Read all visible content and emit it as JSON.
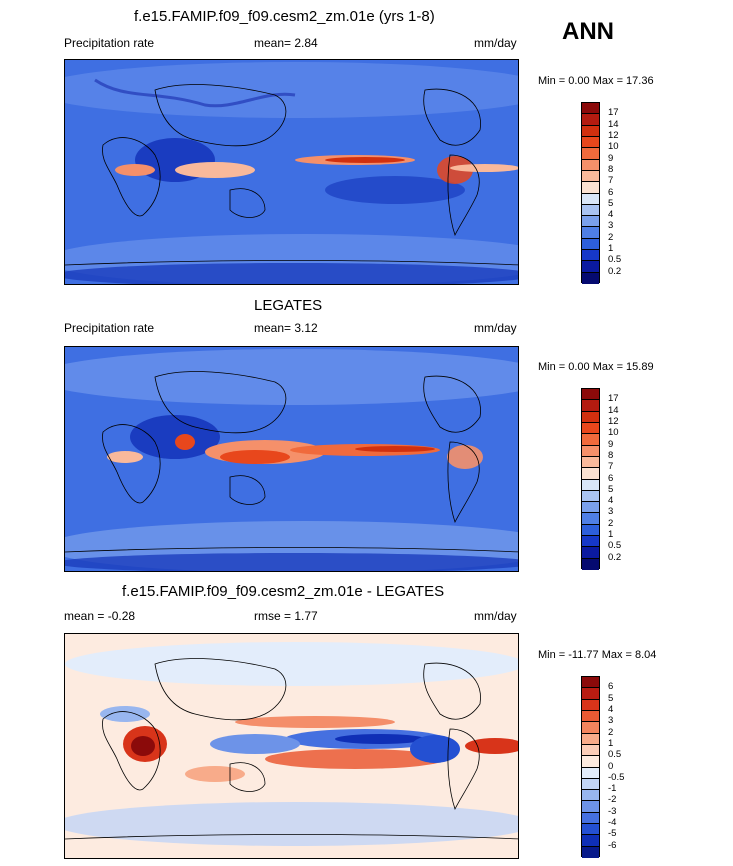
{
  "season": "ANN",
  "panels": [
    {
      "title": "f.e15.FAMIP.f09_f09.cesm2_zm.01e (yrs 1-8)",
      "left_label": "Precipitation rate",
      "center_label": "mean=   2.84",
      "right_label": "mm/day",
      "minmax": "Min =   0.00 Max =  17.36",
      "colorbar_labels": [
        "17",
        "14",
        "12",
        "10",
        "9",
        "8",
        "7",
        "6",
        "5",
        "4",
        "3",
        "2",
        "1",
        "0.5",
        "0.2"
      ],
      "colorbar_colors": [
        "#8b0a0a",
        "#b31b10",
        "#d1300f",
        "#e8471c",
        "#f06a3c",
        "#f5906a",
        "#f9b99b",
        "#fbe2d2",
        "#d9e6f8",
        "#a9c3f2",
        "#7aa0ec",
        "#4f7fe6",
        "#2d5fdc",
        "#1638c8",
        "#0b1aa0",
        "#050a70"
      ]
    },
    {
      "title": "LEGATES",
      "left_label": "Precipitation rate",
      "center_label": "mean=   3.12",
      "right_label": "mm/day",
      "minmax": "Min =   0.00 Max =  15.89",
      "colorbar_labels": [
        "17",
        "14",
        "12",
        "10",
        "9",
        "8",
        "7",
        "6",
        "5",
        "4",
        "3",
        "2",
        "1",
        "0.5",
        "0.2"
      ],
      "colorbar_colors": [
        "#8b0a0a",
        "#b31b10",
        "#d1300f",
        "#e8471c",
        "#f06a3c",
        "#f5906a",
        "#f9b99b",
        "#fbe2d2",
        "#d9e6f8",
        "#a9c3f2",
        "#7aa0ec",
        "#4f7fe6",
        "#2d5fdc",
        "#1638c8",
        "#0b1aa0",
        "#050a70"
      ]
    },
    {
      "title": "f.e15.FAMIP.f09_f09.cesm2_zm.01e - LEGATES",
      "left_label": "mean =  -0.28",
      "center_label": "rmse =   1.77",
      "right_label": "mm/day",
      "minmax": "Min = -11.77 Max =   8.04",
      "colorbar_labels": [
        "6",
        "5",
        "4",
        "3",
        "2",
        "1",
        "0.5",
        "0",
        "-0.5",
        "-1",
        "-2",
        "-3",
        "-4",
        "-5",
        "-6"
      ],
      "colorbar_colors": [
        "#8b0a0a",
        "#b81c12",
        "#d8341a",
        "#ea5a34",
        "#f3845d",
        "#f8ab8a",
        "#fbcdb8",
        "#fdebe0",
        "#e3edfb",
        "#c2d5f6",
        "#98b6ef",
        "#6d93e8",
        "#4570e0",
        "#2450d2",
        "#0f2fb6",
        "#081a8a"
      ]
    }
  ],
  "chart_data": [
    {
      "type": "heatmap",
      "title": "f.e15.FAMIP.f09_f09.cesm2_zm.01e (yrs 1-8)",
      "variable": "Precipitation rate",
      "units": "mm/day",
      "mean": 2.84,
      "min": 0.0,
      "max": 17.36,
      "contour_levels": [
        0.2,
        0.5,
        1,
        2,
        3,
        4,
        5,
        6,
        7,
        8,
        9,
        10,
        12,
        14,
        17
      ]
    },
    {
      "type": "heatmap",
      "title": "LEGATES",
      "variable": "Precipitation rate",
      "units": "mm/day",
      "mean": 3.12,
      "min": 0.0,
      "max": 15.89,
      "contour_levels": [
        0.2,
        0.5,
        1,
        2,
        3,
        4,
        5,
        6,
        7,
        8,
        9,
        10,
        12,
        14,
        17
      ]
    },
    {
      "type": "heatmap",
      "title": "f.e15.FAMIP.f09_f09.cesm2_zm.01e - LEGATES",
      "units": "mm/day",
      "mean": -0.28,
      "rmse": 1.77,
      "min": -11.77,
      "max": 8.04,
      "contour_levels": [
        -6,
        -5,
        -4,
        -3,
        -2,
        -1,
        -0.5,
        0,
        0.5,
        1,
        2,
        3,
        4,
        5,
        6
      ]
    }
  ]
}
